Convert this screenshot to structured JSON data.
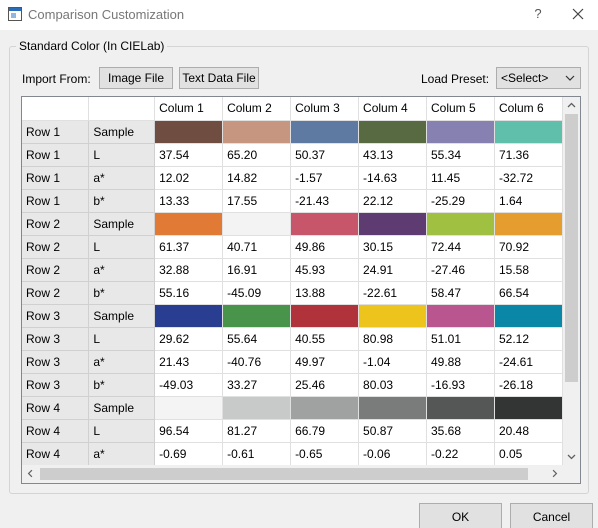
{
  "window": {
    "title": "Comparison Customization",
    "help_label": "?",
    "close_icon": "close-icon"
  },
  "group": {
    "title": "Standard Color (In CIELab)"
  },
  "toolbar": {
    "import_label": "Import From:",
    "image_file_label": "Image File",
    "text_data_file_label": "Text Data File",
    "load_preset_label": "Load Preset:",
    "preset_value": "<Select>"
  },
  "table": {
    "columns": [
      "",
      "",
      "Colum 1",
      "Colum 2",
      "Colum 3",
      "Colum 4",
      "Colum 5",
      "Colum 6"
    ],
    "rows": [
      {
        "row": "Row 1",
        "type": "Sample",
        "colors": [
          "#6f4e41",
          "#c69680",
          "#5f7aa2",
          "#586a42",
          "#8781b2",
          "#5fbfaa"
        ]
      },
      {
        "row": "Row 1",
        "type": "L",
        "values": [
          "37.54",
          "65.20",
          "50.37",
          "43.13",
          "55.34",
          "71.36"
        ]
      },
      {
        "row": "Row 1",
        "type": "a*",
        "values": [
          "12.02",
          "14.82",
          "-1.57",
          "-14.63",
          "11.45",
          "-32.72"
        ]
      },
      {
        "row": "Row 1",
        "type": "b*",
        "values": [
          "13.33",
          "17.55",
          "-21.43",
          "22.12",
          "-25.29",
          "1.64"
        ]
      },
      {
        "row": "Row 2",
        "type": "Sample",
        "colors": [
          "#e07a35",
          "#f3f3f3",
          "#c7566b",
          "#5e3b70",
          "#9fc040",
          "#e59d30"
        ]
      },
      {
        "row": "Row 2",
        "type": "L",
        "values": [
          "61.37",
          "40.71",
          "49.86",
          "30.15",
          "72.44",
          "70.92"
        ]
      },
      {
        "row": "Row 2",
        "type": "a*",
        "values": [
          "32.88",
          "16.91",
          "45.93",
          "24.91",
          "-27.46",
          "15.58"
        ]
      },
      {
        "row": "Row 2",
        "type": "b*",
        "values": [
          "55.16",
          "-45.09",
          "13.88",
          "-22.61",
          "58.47",
          "66.54"
        ]
      },
      {
        "row": "Row 3",
        "type": "Sample",
        "colors": [
          "#293e91",
          "#48944a",
          "#b0323a",
          "#ecc41b",
          "#b9558f",
          "#0a86a6"
        ]
      },
      {
        "row": "Row 3",
        "type": "L",
        "values": [
          "29.62",
          "55.64",
          "40.55",
          "80.98",
          "51.01",
          "52.12"
        ]
      },
      {
        "row": "Row 3",
        "type": "a*",
        "values": [
          "21.43",
          "-40.76",
          "49.97",
          "-1.04",
          "49.88",
          "-24.61"
        ]
      },
      {
        "row": "Row 3",
        "type": "b*",
        "values": [
          "-49.03",
          "33.27",
          "25.46",
          "80.03",
          "-16.93",
          "-26.18"
        ]
      },
      {
        "row": "Row 4",
        "type": "Sample",
        "colors": [
          "#f4f4f4",
          "#c8c9c9",
          "#a0a1a1",
          "#7a7b7b",
          "#555656",
          "#333434"
        ]
      },
      {
        "row": "Row 4",
        "type": "L",
        "values": [
          "96.54",
          "81.27",
          "66.79",
          "50.87",
          "35.68",
          "20.48"
        ]
      },
      {
        "row": "Row 4",
        "type": "a*",
        "values": [
          "-0.69",
          "-0.61",
          "-0.65",
          "-0.06",
          "-0.22",
          "0.05"
        ]
      }
    ]
  },
  "footer": {
    "ok_label": "OK",
    "cancel_label": "Cancel"
  }
}
